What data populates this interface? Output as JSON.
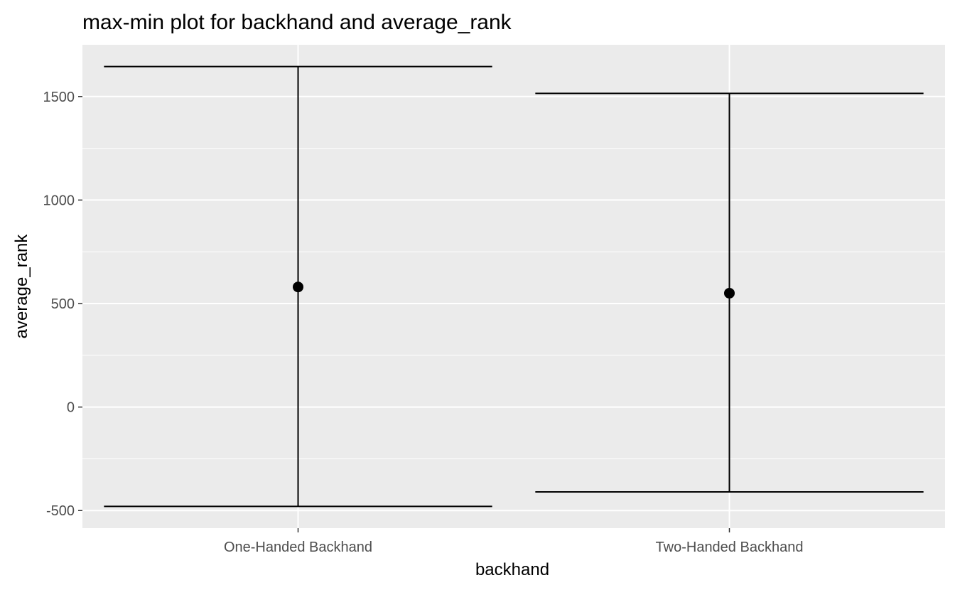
{
  "chart_data": {
    "type": "errorbar",
    "title": "max-min plot for backhand and average_rank",
    "xlabel": "backhand",
    "ylabel": "average_rank",
    "categories": [
      "One-Handed Backhand",
      "Two-Handed Backhand"
    ],
    "points": [
      {
        "category": "One-Handed Backhand",
        "mean": 580,
        "min": -480,
        "max": 1645
      },
      {
        "category": "Two-Handed Backhand",
        "mean": 550,
        "min": -410,
        "max": 1515
      }
    ],
    "ylim": [
      -585,
      1750
    ],
    "yticks": [
      -500,
      0,
      500,
      1000,
      1500
    ],
    "ytick_labels": [
      "-500",
      "0",
      "500",
      "1000",
      "1500"
    ],
    "grid": true,
    "colors": {
      "panel": "#ebebeb",
      "grid": "#ffffff",
      "mark": "#000000",
      "tick_text": "#4d4d4d"
    }
  }
}
